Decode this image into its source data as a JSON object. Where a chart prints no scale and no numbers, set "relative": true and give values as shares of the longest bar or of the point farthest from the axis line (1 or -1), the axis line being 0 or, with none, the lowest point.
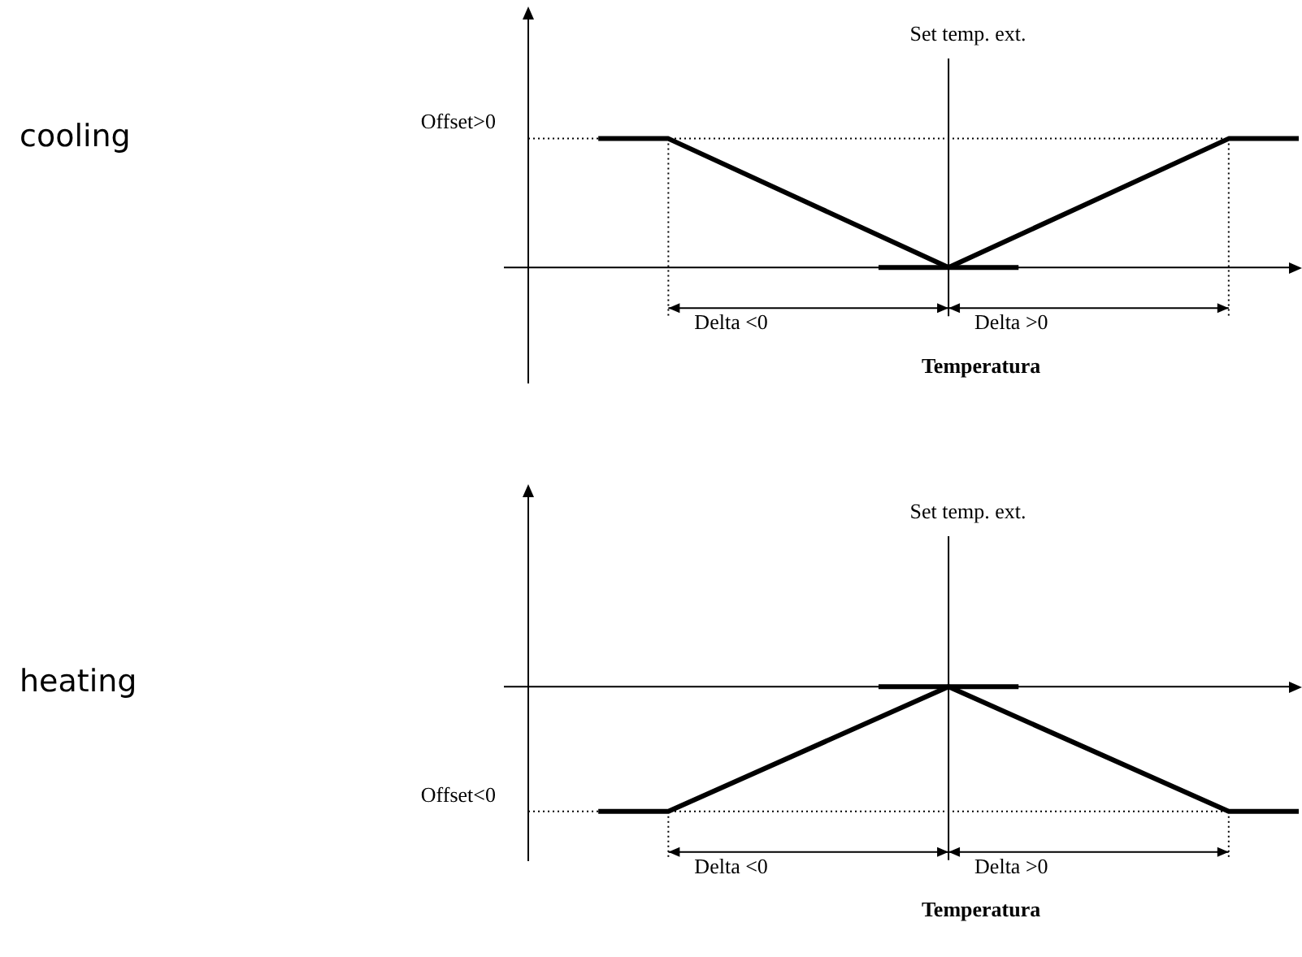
{
  "chart_data": [
    {
      "type": "line",
      "ylabel": "cooling",
      "xlabel": "Temperatura",
      "relative": true,
      "tick_labels": false,
      "grid": false,
      "legend": false,
      "marker": "none",
      "categories": [
        null,
        null,
        null,
        null,
        null,
        null,
        null,
        null,
        null,
        null,
        null,
        null
      ],
      "series": [
        {
          "color": "#000000",
          "values": [
            null,
            1,
            1,
            null,
            null,
            null,
            0,
            null,
            null,
            null,
            1,
            1
          ]
        },
        {
          "color": "#000000",
          "values": [
            null,
            null,
            null,
            null,
            null,
            0,
            0,
            0,
            null,
            null,
            null,
            null
          ]
        }
      ],
      "ref_lines": [
        {
          "axis": "y",
          "value": 1,
          "label": "Offset>0",
          "line_style": "dotted",
          "color": "#000000"
        }
      ],
      "annotations": [
        "Set temp. ext.",
        "Delta <0",
        "Delta >0"
      ]
    },
    {
      "type": "line",
      "ylabel": "heating",
      "xlabel": "Temperatura",
      "relative": true,
      "tick_labels": false,
      "grid": false,
      "legend": false,
      "marker": "none",
      "categories": [
        null,
        null,
        null,
        null,
        null,
        null,
        null,
        null,
        null,
        null,
        null,
        null
      ],
      "series": [
        {
          "color": "#000000",
          "values": [
            null,
            -1,
            -1,
            null,
            null,
            null,
            0,
            null,
            null,
            null,
            -1,
            -1
          ]
        },
        {
          "color": "#000000",
          "values": [
            null,
            null,
            null,
            null,
            null,
            0,
            0,
            0,
            null,
            null,
            null,
            null
          ]
        }
      ],
      "ref_lines": [
        {
          "axis": "y",
          "value": -1,
          "label": "Offset<0",
          "line_style": "dotted",
          "color": "#000000"
        }
      ],
      "annotations": [
        "Set temp. ext.",
        "Delta <0",
        "Delta >0"
      ]
    }
  ]
}
